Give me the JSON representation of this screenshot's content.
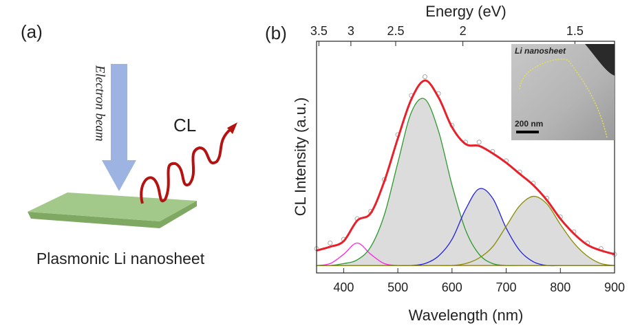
{
  "schematic": {
    "label": "(a)",
    "beam": "Electron beam",
    "emission": "CL",
    "caption": "Plasmonic Li nanosheet"
  },
  "chart_data": {
    "type": "line",
    "panel_label": "(b)",
    "x_label": "Wavelength (nm)",
    "y_label": "CL Intensity (a.u.)",
    "x2_label": "Energy (eV)",
    "x": [
      350,
      375,
      400,
      425,
      450,
      475,
      500,
      525,
      550,
      575,
      600,
      625,
      650,
      675,
      700,
      725,
      750,
      775,
      800,
      825,
      850,
      875,
      900
    ],
    "xlim": [
      350,
      900
    ],
    "xticks": [
      400,
      500,
      600,
      700,
      800,
      900
    ],
    "x2lim": [
      3.543,
      1.378
    ],
    "x2_scale": "reciprocal",
    "x2ticks": [
      3.5,
      3,
      2.5,
      2,
      1.5
    ],
    "ylim": [
      -0.04,
      1.2
    ],
    "inset": {
      "title": "Li nanosheet",
      "scale_bar": "200 nm"
    },
    "series": [
      {
        "color": "#a8a8a8",
        "marker": "circle",
        "values": [
          0.09,
          0.12,
          0.14,
          0.25,
          0.29,
          0.46,
          0.7,
          0.91,
          1.01,
          0.92,
          0.75,
          0.66,
          0.66,
          0.61,
          0.56,
          0.5,
          0.44,
          0.36,
          0.26,
          0.18,
          0.12,
          0.09,
          0.06
        ]
      },
      {
        "color": "#ff20e0",
        "values": [
          0,
          0.01,
          0.06,
          0.12,
          0.06,
          0.01,
          0,
          0,
          0,
          0,
          0,
          0,
          0,
          0,
          0,
          0,
          0,
          0,
          0,
          0,
          0,
          0,
          0
        ]
      },
      {
        "color": "#2a9a2a",
        "fill": "#dcdcdc",
        "values": [
          0,
          0,
          0.01,
          0.03,
          0.1,
          0.27,
          0.55,
          0.82,
          0.89,
          0.72,
          0.43,
          0.19,
          0.06,
          0.01,
          0,
          0,
          0,
          0,
          0,
          0,
          0,
          0,
          0
        ]
      },
      {
        "color": "#2020e0",
        "fill": "#dcdcdc",
        "values": [
          0,
          0,
          0,
          0,
          0,
          0,
          0,
          0,
          0.01,
          0.05,
          0.14,
          0.3,
          0.41,
          0.36,
          0.2,
          0.08,
          0.02,
          0,
          0,
          0,
          0,
          0,
          0
        ]
      },
      {
        "color": "#8a8a00",
        "fill": "#dcdcdc",
        "values": [
          0,
          0,
          0,
          0,
          0,
          0,
          0,
          0,
          0,
          0,
          0,
          0.01,
          0.04,
          0.1,
          0.21,
          0.32,
          0.37,
          0.33,
          0.22,
          0.12,
          0.05,
          0.01,
          0
        ]
      },
      {
        "color": "#8a8a00",
        "values": [
          0,
          0,
          0,
          0,
          0,
          0,
          0,
          0,
          0,
          0,
          0,
          0,
          0,
          0,
          0,
          0,
          0,
          0,
          0,
          0,
          0,
          0,
          0
        ]
      },
      {
        "color": "#e8202a",
        "width": 3,
        "values": [
          0.08,
          0.1,
          0.13,
          0.24,
          0.28,
          0.45,
          0.68,
          0.89,
          0.99,
          0.9,
          0.74,
          0.65,
          0.64,
          0.6,
          0.55,
          0.49,
          0.43,
          0.35,
          0.25,
          0.17,
          0.11,
          0.08,
          0.06
        ]
      }
    ]
  }
}
